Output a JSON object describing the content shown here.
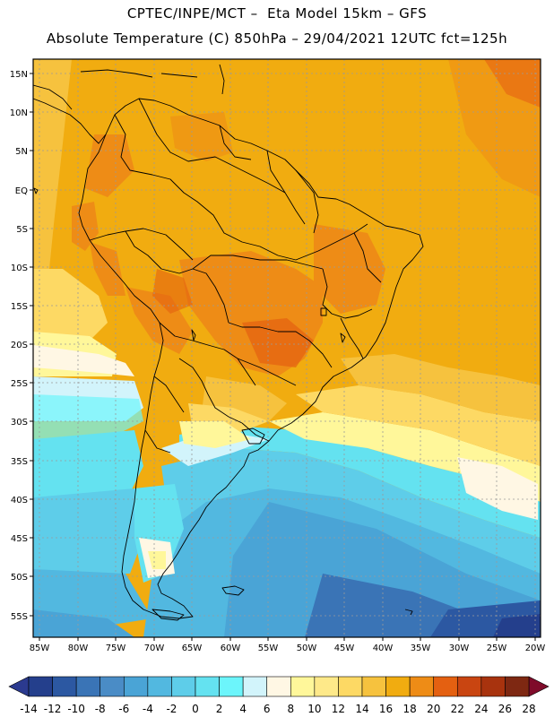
{
  "title_line1": "CPTEC/INPE/MCT –  Eta Model 15km – GFS",
  "title_line2": "Absolute Temperature (C) 850hPa – 29/04/2021 12UTC fct=125h",
  "lat_labels": [
    "15N",
    "10N",
    "5N",
    "EQ",
    "5S",
    "10S",
    "15S",
    "20S",
    "25S",
    "30S",
    "35S",
    "40S",
    "45S",
    "50S",
    "55S"
  ],
  "lon_labels": [
    "85W",
    "80W",
    "75W",
    "70W",
    "65W",
    "60W",
    "55W",
    "50W",
    "45W",
    "40W",
    "35W",
    "30W",
    "25W",
    "20W"
  ],
  "colorbar": {
    "ticks": [
      "-14",
      "-12",
      "-10",
      "-8",
      "-6",
      "-4",
      "-2",
      "0",
      "2",
      "4",
      "6",
      "8",
      "10",
      "12",
      "14",
      "16",
      "18",
      "20",
      "22",
      "24",
      "26",
      "28"
    ],
    "colors": [
      "#243f8c",
      "#2c58a2",
      "#3a74b6",
      "#4a8cc6",
      "#4aa4d6",
      "#52b8e0",
      "#5ecde9",
      "#64e2f0",
      "#6cf5fb",
      "#d2f4fb",
      "#fff7e4",
      "#fff79a",
      "#fee989",
      "#fdd964",
      "#f6c23e",
      "#f1ac10",
      "#ee8c16",
      "#e46011",
      "#c94511",
      "#a8330e",
      "#7e2812"
    ],
    "under_color": "#2b3a8f",
    "over_color": "#7f0b2a"
  },
  "colors": {
    "land_border": "#000000",
    "grid": "#9a9a9a"
  }
}
